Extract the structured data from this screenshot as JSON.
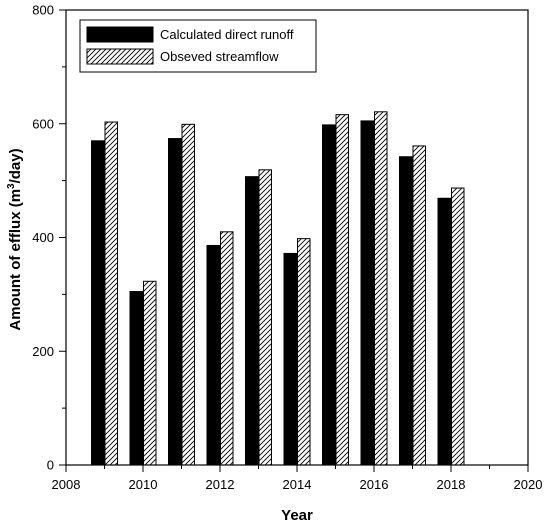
{
  "chart_data": {
    "type": "bar",
    "xlabel": "Year",
    "ylabel": "Amount of efflux (m³/day)",
    "ylabel_parts": {
      "before": "Amount of efflux (m",
      "sup": "3",
      "after": "/day)"
    },
    "xlim": [
      2008,
      2020
    ],
    "ylim": [
      0,
      800
    ],
    "xticks": [
      2008,
      2010,
      2012,
      2014,
      2016,
      2018,
      2020
    ],
    "yticks": [
      0,
      200,
      400,
      600,
      800
    ],
    "minor_x_step": 1,
    "minor_y_step": 100,
    "legend_position": "top-left",
    "x": [
      2009,
      2010,
      2011,
      2012,
      2013,
      2014,
      2015,
      2016,
      2017,
      2018
    ],
    "series": [
      {
        "name": "Calculated direct runoff",
        "fill": "solid",
        "color": "#000000",
        "values": [
          570,
          305,
          574,
          386,
          507,
          372,
          598,
          605,
          542,
          469
        ]
      },
      {
        "name": "Obseved streamflow",
        "fill": "hatched",
        "color": "#000000",
        "values": [
          603,
          323,
          599,
          410,
          519,
          398,
          616,
          621,
          561,
          487
        ]
      }
    ]
  }
}
